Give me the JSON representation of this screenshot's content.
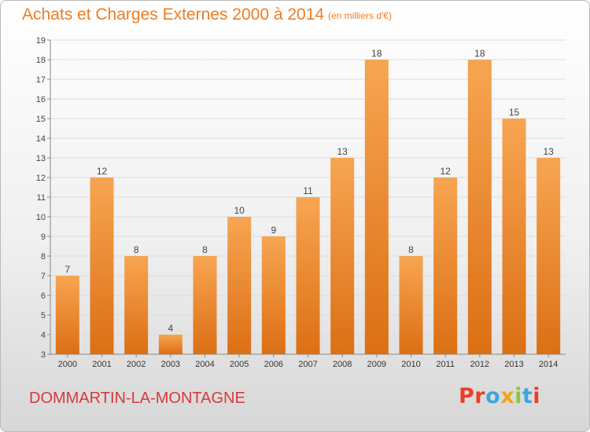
{
  "header": {
    "title": "Achats et Charges Externes 2000 à 2014",
    "unit": "(en milliers d'€)"
  },
  "footer": {
    "commune": "DOMMARTIN-LA-MONTAGNE",
    "logo_letters": [
      "P",
      "r",
      "o",
      "x",
      "i",
      "t",
      "i"
    ],
    "logo_colors": [
      "#e8402a",
      "#e8402a",
      "#3aa6dd",
      "#f1a31b",
      "#8cc63f",
      "#3aa6dd",
      "#e8402a"
    ]
  },
  "colors": {
    "accent": "#ee7d22",
    "bar_light": "#f7a552",
    "bar_dark": "#dc6f14",
    "commune": "#d63a3a"
  },
  "chart_data": {
    "type": "bar",
    "categories": [
      "2000",
      "2001",
      "2002",
      "2003",
      "2004",
      "2005",
      "2006",
      "2007",
      "2008",
      "2009",
      "2010",
      "2011",
      "2012",
      "2013",
      "2014"
    ],
    "values": [
      7,
      12,
      8,
      4,
      8,
      10,
      9,
      11,
      13,
      18,
      8,
      12,
      18,
      15,
      13
    ],
    "ylim": [
      3,
      19
    ],
    "yticks": [
      3,
      4,
      5,
      6,
      7,
      8,
      9,
      10,
      11,
      12,
      13,
      14,
      15,
      16,
      17,
      18,
      19
    ],
    "grid": true
  }
}
